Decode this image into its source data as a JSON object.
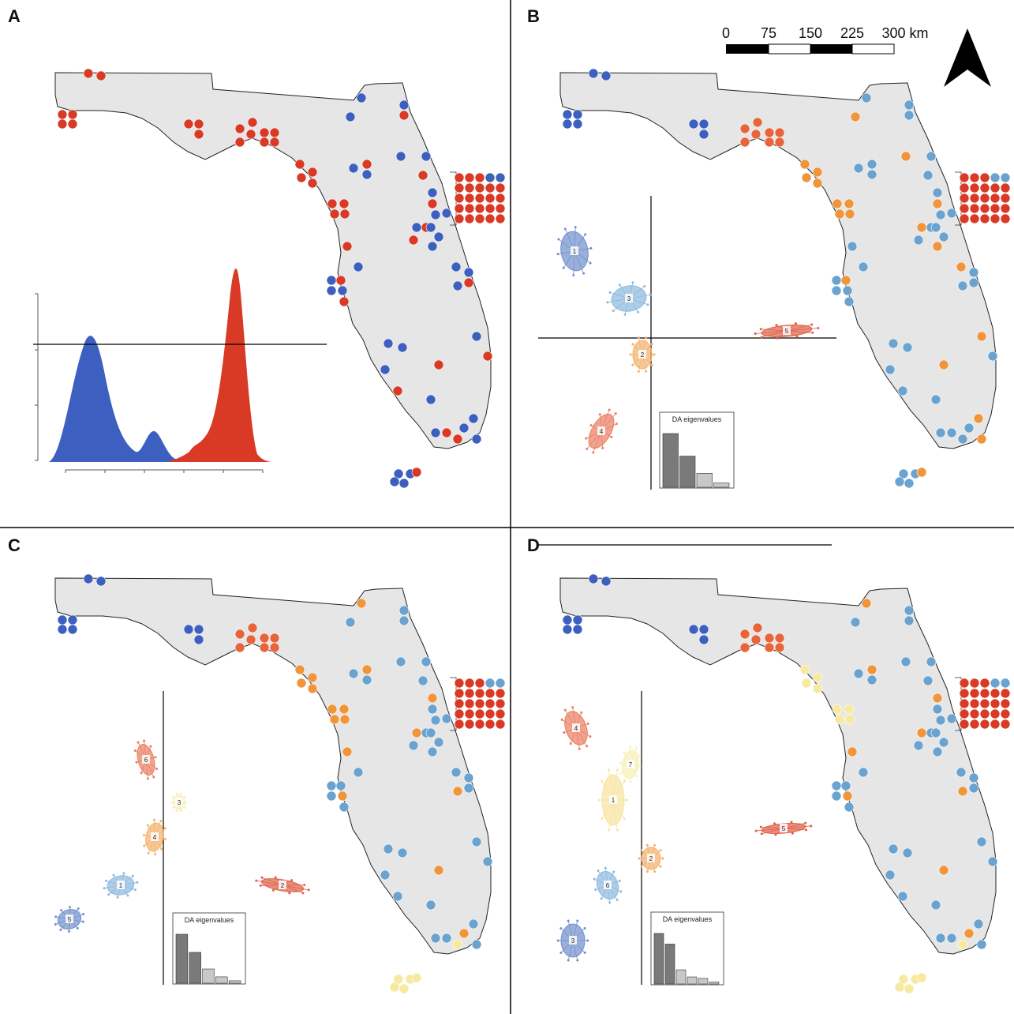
{
  "panels": [
    {
      "id": "A",
      "label": "A",
      "type": "density"
    },
    {
      "id": "B",
      "label": "B",
      "type": "scatter",
      "eig_title": "DA eigenvalues",
      "eigenvalues": [
        1.0,
        0.58,
        0.26,
        0.08
      ]
    },
    {
      "id": "C",
      "label": "C",
      "type": "scatter",
      "eig_title": "DA eigenvalues",
      "eigenvalues": [
        1.0,
        0.63,
        0.29,
        0.13,
        0.05
      ]
    },
    {
      "id": "D",
      "label": "D",
      "type": "scatter",
      "eig_title": "DA eigenvalues",
      "eigenvalues": [
        1.0,
        0.79,
        0.28,
        0.14,
        0.11,
        0.04
      ]
    }
  ],
  "scalebar": {
    "ticks": [
      "0",
      "75",
      "150",
      "225",
      "300 km"
    ]
  },
  "north_arrow": "north-arrow-icon",
  "colors": {
    "blue_dark": "#3d5fc0",
    "blue": "#3c64b4",
    "blue_light": "#6aa3d0",
    "orange": "#f0953a",
    "orange_red": "#e8643a",
    "red": "#d93a26",
    "yellow": "#f7e9a0",
    "land": "#e6e6e6"
  },
  "clusters": {
    "B": [
      {
        "id": "1",
        "color": "#6f8fcc"
      },
      {
        "id": "3",
        "color": "#8cb8dd"
      },
      {
        "id": "2",
        "color": "#f4b06a"
      },
      {
        "id": "5",
        "color": "#e06048"
      },
      {
        "id": "4",
        "color": "#ea7d60"
      }
    ],
    "C": [
      {
        "id": "6",
        "color": "#ea7d60"
      },
      {
        "id": "3",
        "color": "#f8efb8"
      },
      {
        "id": "4",
        "color": "#f4b06a"
      },
      {
        "id": "1",
        "color": "#8cb8dd"
      },
      {
        "id": "5",
        "color": "#6f8fcc"
      },
      {
        "id": "2",
        "color": "#e06048"
      }
    ],
    "D": [
      {
        "id": "4",
        "color": "#ea7d60"
      },
      {
        "id": "7",
        "color": "#f8efb8"
      },
      {
        "id": "1",
        "color": "#f8e3a0"
      },
      {
        "id": "5",
        "color": "#e06048"
      },
      {
        "id": "2",
        "color": "#f4b06a"
      },
      {
        "id": "6",
        "color": "#8cb8dd"
      },
      {
        "id": "3",
        "color": "#6f8fcc"
      }
    ]
  }
}
